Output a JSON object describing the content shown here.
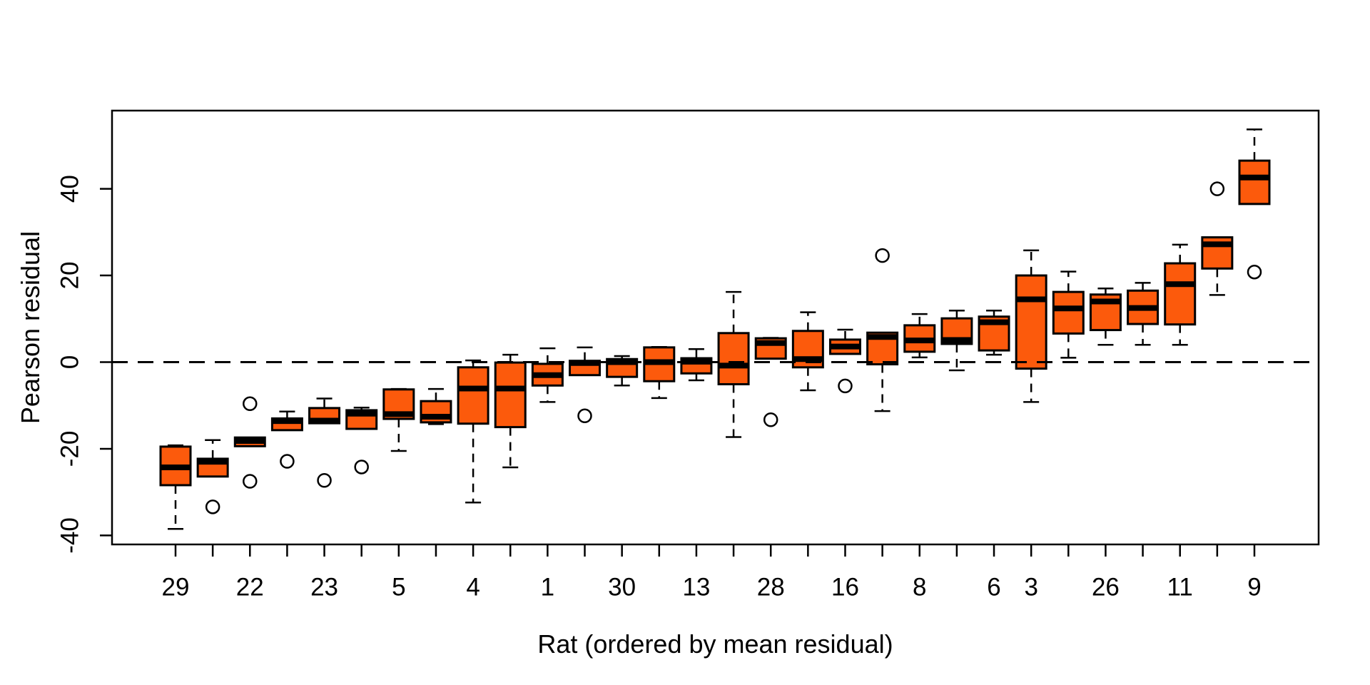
{
  "figure": {
    "background": "#ffffff",
    "text_color": "#000000"
  },
  "chart_data": {
    "type": "boxplot",
    "title": "",
    "xlabel": "Rat (ordered by mean residual)",
    "ylabel": "Pearson residual",
    "yticks": [
      -40,
      -20,
      0,
      20,
      40
    ],
    "ylim": [
      -45.5,
      58
    ],
    "grid": false,
    "zero_line": {
      "value": 0,
      "style": "dashed",
      "color": "#000000"
    },
    "box_fill": "#FC5A0C",
    "box_stroke": "#000000",
    "n_boxes": 30,
    "boxes": [
      {
        "label": "29",
        "whislo": -38.5,
        "q1": -28.4,
        "med": -24.3,
        "q3": -19.5,
        "whishi": -19.2,
        "outliers": []
      },
      {
        "label": "",
        "whislo": -26.4,
        "q1": -26.4,
        "med": -23.0,
        "q3": -22.3,
        "whishi": -18.0,
        "outliers": [
          -33.4
        ]
      },
      {
        "label": "22",
        "whislo": -19.4,
        "q1": -19.4,
        "med": -18.2,
        "q3": -17.4,
        "whishi": -17.4,
        "outliers": [
          -9.6,
          -27.5
        ]
      },
      {
        "label": "",
        "whislo": -15.7,
        "q1": -15.7,
        "med": -13.6,
        "q3": -13.0,
        "whishi": -11.4,
        "outliers": [
          -22.9
        ]
      },
      {
        "label": "23",
        "whislo": -14.1,
        "q1": -14.1,
        "med": -13.5,
        "q3": -10.6,
        "whishi": -8.4,
        "outliers": [
          -27.3
        ]
      },
      {
        "label": "",
        "whislo": -15.4,
        "q1": -15.4,
        "med": -11.9,
        "q3": -11.1,
        "whishi": -10.5,
        "outliers": [
          -24.2
        ]
      },
      {
        "label": "5",
        "whislo": -20.5,
        "q1": -13.1,
        "med": -12.0,
        "q3": -6.3,
        "whishi": -6.2,
        "outliers": []
      },
      {
        "label": "",
        "whislo": -14.3,
        "q1": -13.9,
        "med": -12.6,
        "q3": -9.0,
        "whishi": -6.2,
        "outliers": []
      },
      {
        "label": "4",
        "whislo": -32.4,
        "q1": -14.2,
        "med": -6.1,
        "q3": -1.2,
        "whishi": 0.4,
        "outliers": []
      },
      {
        "label": "",
        "whislo": -24.3,
        "q1": -15.0,
        "med": -6.1,
        "q3": -0.1,
        "whishi": 1.7,
        "outliers": []
      },
      {
        "label": "1",
        "whislo": -9.2,
        "q1": -5.4,
        "med": -3.0,
        "q3": -0.4,
        "whishi": 3.2,
        "outliers": []
      },
      {
        "label": "",
        "whislo": -3.0,
        "q1": -3.0,
        "med": -0.2,
        "q3": 0.3,
        "whishi": 3.4,
        "outliers": [
          -12.4
        ]
      },
      {
        "label": "30",
        "whislo": -5.4,
        "q1": -3.4,
        "med": 0.0,
        "q3": 0.7,
        "whishi": 1.4,
        "outliers": []
      },
      {
        "label": "",
        "whislo": -8.3,
        "q1": -4.4,
        "med": 0.0,
        "q3": 3.4,
        "whishi": 3.5,
        "outliers": []
      },
      {
        "label": "13",
        "whislo": -4.2,
        "q1": -2.6,
        "med": 0.1,
        "q3": 0.9,
        "whishi": 3.0,
        "outliers": []
      },
      {
        "label": "",
        "whislo": -17.3,
        "q1": -5.1,
        "med": -0.8,
        "q3": 6.7,
        "whishi": 16.2,
        "outliers": []
      },
      {
        "label": "28",
        "whislo": 0.8,
        "q1": 0.8,
        "med": 4.4,
        "q3": 5.5,
        "whishi": 5.6,
        "outliers": [
          -13.3
        ]
      },
      {
        "label": "",
        "whislo": -6.5,
        "q1": -1.2,
        "med": 0.7,
        "q3": 7.2,
        "whishi": 11.5,
        "outliers": []
      },
      {
        "label": "16",
        "whislo": 1.9,
        "q1": 1.9,
        "med": 3.6,
        "q3": 5.2,
        "whishi": 7.5,
        "outliers": [
          -5.5
        ]
      },
      {
        "label": "",
        "whislo": -11.3,
        "q1": -0.5,
        "med": 5.8,
        "q3": 6.8,
        "whishi": 6.8,
        "outliers": [
          24.6
        ]
      },
      {
        "label": "8",
        "whislo": 1.1,
        "q1": 2.4,
        "med": 5.0,
        "q3": 8.5,
        "whishi": 11.1,
        "outliers": []
      },
      {
        "label": "",
        "whislo": -1.9,
        "q1": 4.2,
        "med": 5.1,
        "q3": 10.1,
        "whishi": 11.9,
        "outliers": []
      },
      {
        "label": "6",
        "whislo": 1.7,
        "q1": 2.7,
        "med": 9.2,
        "q3": 10.5,
        "whishi": 11.9,
        "outliers": []
      },
      {
        "label": "3",
        "whislo": -9.2,
        "q1": -1.5,
        "med": 14.5,
        "q3": 20.0,
        "whishi": 25.8,
        "outliers": []
      },
      {
        "label": "",
        "whislo": 1.0,
        "q1": 6.6,
        "med": 12.4,
        "q3": 16.2,
        "whishi": 20.9,
        "outliers": []
      },
      {
        "label": "26",
        "whislo": 4.0,
        "q1": 7.4,
        "med": 14.0,
        "q3": 15.6,
        "whishi": 17.0,
        "outliers": []
      },
      {
        "label": "",
        "whislo": 4.0,
        "q1": 8.8,
        "med": 12.5,
        "q3": 16.5,
        "whishi": 18.3,
        "outliers": []
      },
      {
        "label": "11",
        "whislo": 4.0,
        "q1": 8.7,
        "med": 18.0,
        "q3": 22.8,
        "whishi": 27.1,
        "outliers": []
      },
      {
        "label": "",
        "whislo": 15.5,
        "q1": 21.6,
        "med": 27.2,
        "q3": 28.8,
        "whishi": 28.8,
        "outliers": [
          40.0
        ]
      },
      {
        "label": "9",
        "whislo": 36.5,
        "q1": 36.5,
        "med": 42.6,
        "q3": 46.5,
        "whishi": 53.7,
        "outliers": [
          20.8
        ]
      }
    ]
  }
}
